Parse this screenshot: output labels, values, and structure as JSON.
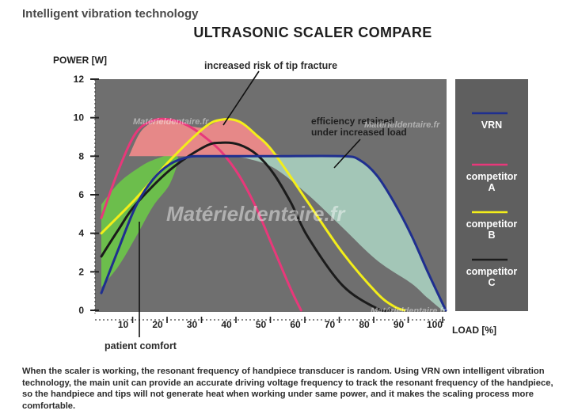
{
  "header": {
    "kicker": "Intelligent vibration technology",
    "title": "ULTRASONIC SCALER COMPARE"
  },
  "chart_data": {
    "type": "line",
    "ylabel": "POWER [W]",
    "xlabel": "LOAD [%]",
    "xlim": [
      0,
      100
    ],
    "ylim": [
      0,
      12
    ],
    "x_ticks": [
      "10",
      "20",
      "30",
      "40",
      "50",
      "60",
      "70",
      "80",
      "90",
      "100"
    ],
    "y_ticks": [
      "0",
      "2",
      "4",
      "6",
      "8",
      "10",
      "12"
    ],
    "grid": false,
    "legend_position": "right",
    "colors": {
      "plot_bg": "#6f6f6f",
      "legend_bg": "#5f5f5f",
      "VRN": "#1f2f8f",
      "competitor A": "#e8387a",
      "competitor B": "#f3ee1a",
      "competitor C": "#1b1b1b",
      "risk_zone": "#f08a8a",
      "comfort_zone": "#6cc24a",
      "efficiency_zone": "#a9cfbf"
    },
    "series": [
      {
        "name": "VRN",
        "x": [
          0,
          5,
          10,
          15,
          20,
          25,
          28,
          35,
          50,
          70,
          75,
          80,
          85,
          90,
          95,
          100
        ],
        "y": [
          0.9,
          3.2,
          5.4,
          6.8,
          7.6,
          7.95,
          8,
          8,
          8,
          8,
          7.8,
          7,
          5.6,
          3.9,
          1.9,
          0
        ]
      },
      {
        "name": "competitor A",
        "x": [
          0,
          5,
          10,
          15,
          20,
          25,
          30,
          35,
          40,
          45,
          50,
          55,
          58
        ],
        "y": [
          4.8,
          7.3,
          9.2,
          9.85,
          9.9,
          9.6,
          9.0,
          8.2,
          7.0,
          5.3,
          3.2,
          1.1,
          0
        ]
      },
      {
        "name": "competitor B",
        "x": [
          0,
          10,
          20,
          30,
          35,
          40,
          45,
          50,
          60,
          70,
          80,
          85,
          88
        ],
        "y": [
          4.0,
          5.8,
          7.8,
          9.5,
          9.9,
          9.8,
          9.1,
          8.2,
          5.6,
          3.0,
          0.9,
          0.2,
          0
        ]
      },
      {
        "name": "competitor C",
        "x": [
          0,
          5,
          10,
          20,
          30,
          35,
          40,
          45,
          50,
          55,
          60,
          70,
          80,
          84
        ],
        "y": [
          2.8,
          4.2,
          5.5,
          7.3,
          8.5,
          8.7,
          8.6,
          8.1,
          7.1,
          5.6,
          3.8,
          1.3,
          0.1,
          0
        ]
      }
    ],
    "annotations": {
      "risk": "increased risk of tip fracture",
      "efficiency_line1": "efficiency retained",
      "efficiency_line2": "under increased load",
      "comfort": "patient comfort"
    },
    "watermarks": [
      "Matérieldentaire.fr",
      "Matérieldentaire.fr",
      "Matérieldentaire.fr",
      "Matérieldentaire.fr"
    ]
  },
  "legend": [
    {
      "line1": "VRN",
      "line2": "",
      "series": "VRN"
    },
    {
      "line1": "competitor",
      "line2": "A",
      "series": "competitor A"
    },
    {
      "line1": "competitor",
      "line2": "B",
      "series": "competitor B"
    },
    {
      "line1": "competitor",
      "line2": "C",
      "series": "competitor C"
    }
  ],
  "footer": {
    "text": "When the scaler is working, the resonant frequency of handpiece transducer is random. Using VRN own intelligent vibration technology, the main unit can provide an accurate driving voltage frequency to track the resonant frequency of the handpiece, so the handpiece and tips will not generate heat when working under same power, and it makes the scaling process more comfortable."
  }
}
